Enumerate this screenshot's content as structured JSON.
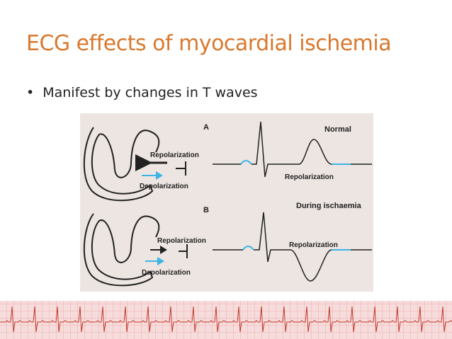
{
  "slide": {
    "title": "ECG effects of myocardial ischemia",
    "bullets": [
      "Manifest by changes in T waves"
    ],
    "figure": {
      "panel_a": {
        "letter": "A",
        "state": "Normal",
        "heart_repolarization": "Repolarization",
        "heart_depolarization": "Depolarization",
        "ecg_label": "Repolarization"
      },
      "panel_b": {
        "letter": "B",
        "state": "During ischaemia",
        "heart_repolarization": "Repolarization",
        "heart_depolarization": "Depolarization",
        "ecg_label": "Repolarization"
      }
    }
  }
}
